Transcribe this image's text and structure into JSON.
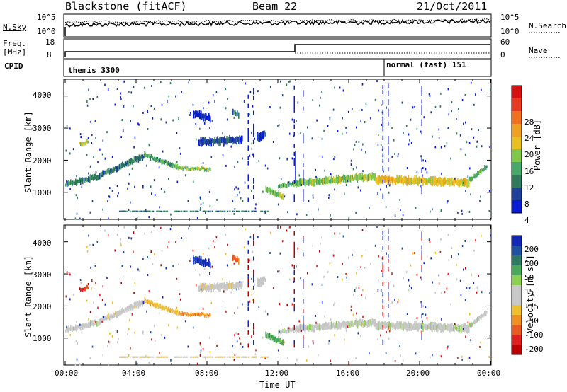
{
  "header": {
    "station": "Blackstone (fitACF)",
    "beam": "Beam 22",
    "date": "21/Oct/2011"
  },
  "noise_panel": {
    "left_label": "N.Sky",
    "right_label": "N.Search",
    "left_ticks": [
      "10^5",
      "10^0"
    ],
    "right_ticks": [
      "10^5",
      "10^0"
    ]
  },
  "freq_panel": {
    "left_label_1": "Freq.",
    "left_label_2": "[MHz]",
    "right_label": "Nave",
    "left_ticks": [
      "18",
      "8"
    ],
    "right_ticks": [
      "60",
      "0"
    ],
    "cpid_label": "CPID",
    "modes": [
      "themis 3300",
      "normal (fast) 151"
    ]
  },
  "chart_data": [
    {
      "type": "heatmap",
      "name": "power",
      "ylabel": "Slant Range [km]",
      "xlabel": "",
      "y_ticks": [
        "4000",
        "3000",
        "2000",
        "1000"
      ],
      "ylim": [
        180,
        4500
      ],
      "colorbar_label": "Power [dB]",
      "colorbar_ticks": [
        "28",
        "24",
        "20",
        "16",
        "12",
        "8",
        "4"
      ],
      "colors": [
        "#0a1bd6",
        "#20409a",
        "#2f7a5a",
        "#47a86a",
        "#7fc84a",
        "#e8c020",
        "#f0a020",
        "#f07020",
        "#e83a20",
        "#d81010"
      ]
    },
    {
      "type": "heatmap",
      "name": "velocity",
      "ylabel": "Slant Range [km]",
      "xlabel": "Time UT",
      "y_ticks": [
        "4000",
        "3000",
        "2000",
        "1000"
      ],
      "x_ticks": [
        "00:00",
        "04:00",
        "08:00",
        "12:00",
        "16:00",
        "20:00",
        "00:00"
      ],
      "ylim": [
        180,
        4500
      ],
      "colorbar_label_main": "Velocity [m s",
      "colorbar_label_sup": "-1",
      "colorbar_label_end": "]",
      "colorbar_ticks": [
        "200",
        "100",
        "50",
        "15",
        "-15",
        "-50",
        "-100",
        "-200"
      ],
      "colors": [
        "#1428b8",
        "#2050a0",
        "#2e7a60",
        "#4aa85a",
        "#8cd050",
        "#c8c8c8",
        "#c8c8c8",
        "#f0c030",
        "#f09020",
        "#e85a20",
        "#e02020",
        "#c00000"
      ]
    }
  ]
}
